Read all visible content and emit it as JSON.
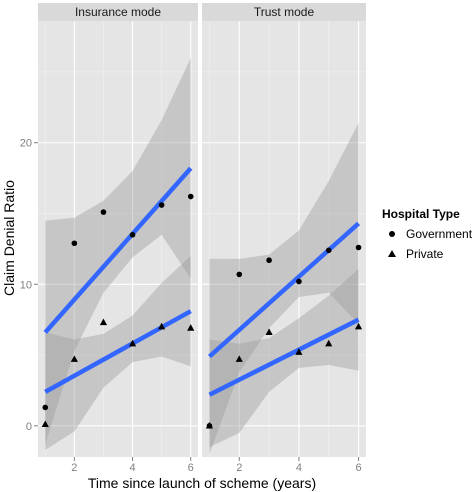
{
  "chart_data": {
    "type": "scatter",
    "xlabel": "Time since launch of scheme (years)",
    "ylabel": "Claim Denial Ratio",
    "xlim": [
      0.75,
      6.25
    ],
    "ylim": [
      -2.2,
      28.6
    ],
    "x_ticks": [
      2,
      4,
      6
    ],
    "y_ticks": [
      0,
      10,
      20
    ],
    "grid": true,
    "legend": {
      "title": "Hospital Type",
      "placement": "right",
      "entries": [
        {
          "label": "Government",
          "shape": "circle"
        },
        {
          "label": "Private",
          "shape": "triangle"
        }
      ]
    },
    "panels": [
      {
        "title": "Insurance mode",
        "series": [
          {
            "name": "Government",
            "x": [
              1,
              2,
              3,
              4,
              5,
              6
            ],
            "y": [
              1.3,
              12.9,
              15.1,
              13.5,
              15.6,
              16.2
            ],
            "fit": {
              "x0": 1,
              "y0": 6.6,
              "x1": 6,
              "y1": 18.2
            },
            "band_upper": [
              14.5,
              14.7,
              15.9,
              18.0,
              21.6,
              26.0
            ],
            "band_lower": [
              -1.3,
              5.3,
              9.4,
              11.9,
              13.5,
              10.4
            ]
          },
          {
            "name": "Private",
            "x": [
              1,
              2,
              3,
              4,
              5,
              6
            ],
            "y": [
              0.1,
              4.7,
              7.3,
              5.8,
              7.0,
              6.9
            ],
            "fit": {
              "x0": 1,
              "y0": 2.4,
              "x1": 6,
              "y1": 8.1
            },
            "band_upper": [
              6.6,
              6.1,
              6.5,
              7.8,
              10.1,
              12.0
            ],
            "band_lower": [
              -1.7,
              -0.4,
              2.7,
              4.5,
              4.9,
              4.2
            ]
          }
        ]
      },
      {
        "title": "Trust mode",
        "series": [
          {
            "name": "Government",
            "x": [
              1,
              2,
              3,
              4,
              5,
              6
            ],
            "y": [
              0.0,
              10.7,
              11.7,
              10.2,
              12.4,
              12.6
            ],
            "fit": {
              "x0": 1,
              "y0": 4.9,
              "x1": 6,
              "y1": 14.3
            },
            "band_upper": [
              11.8,
              11.8,
              12.1,
              13.8,
              17.3,
              21.4
            ],
            "band_lower": [
              -2.0,
              3.8,
              6.9,
              9.1,
              9.4,
              7.2
            ]
          },
          {
            "name": "Private",
            "x": [
              1,
              2,
              3,
              4,
              5,
              6
            ],
            "y": [
              0.0,
              4.7,
              6.6,
              5.2,
              5.8,
              7.0
            ],
            "fit": {
              "x0": 1,
              "y0": 2.2,
              "x1": 6,
              "y1": 7.5
            },
            "band_upper": [
              6.1,
              5.8,
              6.2,
              7.6,
              9.2,
              11.1
            ],
            "band_lower": [
              -1.5,
              -0.5,
              2.4,
              4.1,
              4.3,
              3.9
            ]
          }
        ]
      }
    ],
    "colors": {
      "panel_bg": "#e5e5e5",
      "grid_major": "#ffffff",
      "grid_minor": "#f2f2f2",
      "strip_bg": "#d9d9d9",
      "fit_line": "#3366ff",
      "band": "#999999",
      "tick": "#7f7f7f"
    }
  }
}
